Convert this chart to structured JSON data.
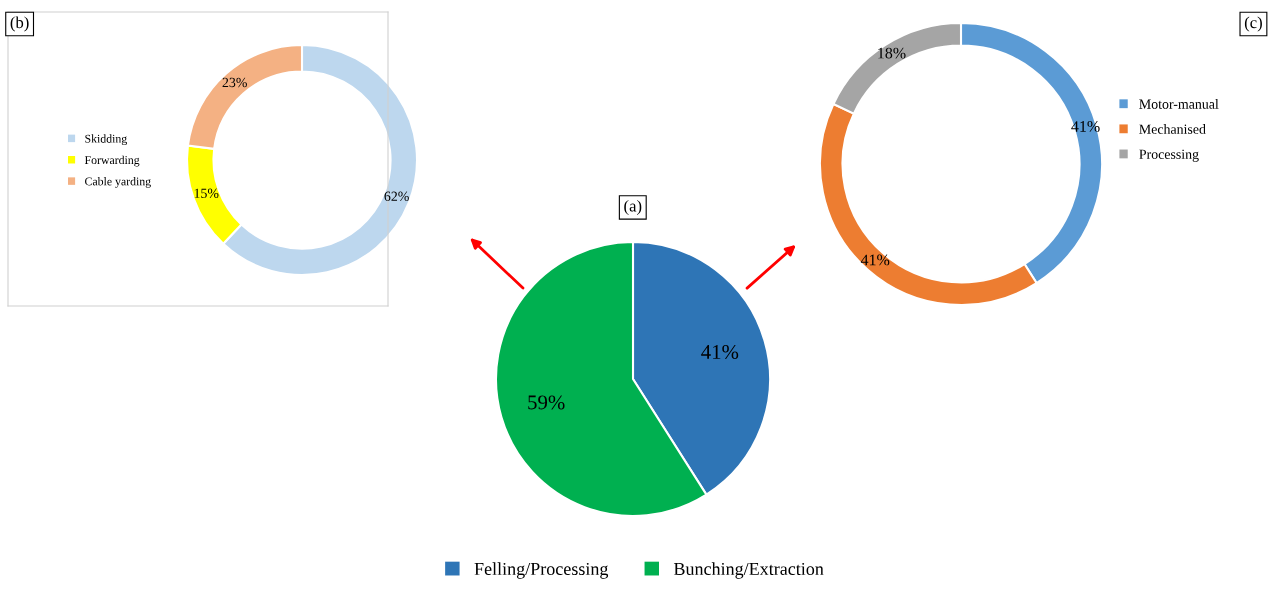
{
  "chart_data": [
    {
      "type": "donut",
      "title": "(b)",
      "categories": [
        "Skidding",
        "Forwarding",
        "Cable yarding"
      ],
      "values": [
        62,
        15,
        23
      ],
      "value_labels": [
        "62%",
        "15%",
        "23%"
      ],
      "colors": [
        "#bdd7ee",
        "#ffff00",
        "#f4b183"
      ],
      "legend": "left"
    },
    {
      "type": "donut",
      "title": "(c)",
      "categories": [
        "Motor-manual",
        "Mechanised",
        "Processing"
      ],
      "values": [
        41,
        41,
        18
      ],
      "value_labels": [
        "41%",
        "41%",
        "18%"
      ],
      "colors": [
        "#5b9bd5",
        "#ed7d31",
        "#a5a5a5"
      ],
      "legend": "right"
    },
    {
      "type": "pie",
      "title": "(a)",
      "categories": [
        "Felling/Processing",
        "Bunching/Extraction"
      ],
      "values": [
        41,
        59
      ],
      "value_labels": [
        "41%",
        "59%"
      ],
      "colors": [
        "#2e75b6",
        "#00b050"
      ],
      "legend": "bottom"
    }
  ]
}
